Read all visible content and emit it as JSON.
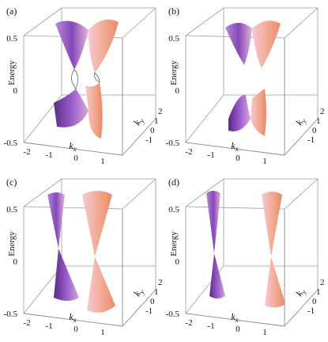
{
  "panels": [
    {
      "label": "(a)",
      "cones": "merged",
      "energy_ticks": [
        "0.5",
        "0",
        "-0.5"
      ],
      "kx_ticks": [
        "-2",
        "-1",
        "0",
        "1"
      ],
      "ky_ticks": [
        "2",
        "1",
        "0",
        "-1"
      ],
      "energy_label": "Energy",
      "kx_label": "k",
      "kx_sub": "x",
      "ky_label": "k",
      "ky_sub": "y"
    },
    {
      "label": "(b)",
      "cones": "gapped",
      "energy_ticks": [
        "0.5",
        "0",
        "-0.5"
      ],
      "kx_ticks": [
        "-2",
        "-1",
        "0",
        "1"
      ],
      "ky_ticks": [
        "2",
        "1",
        "0",
        "-1"
      ],
      "energy_label": "Energy",
      "kx_label": "k",
      "kx_sub": "x",
      "ky_label": "k",
      "ky_sub": "y"
    },
    {
      "label": "(c)",
      "cones": "two-cones-close",
      "energy_ticks": [
        "0.5",
        "0",
        "-0.5"
      ],
      "kx_ticks": [
        "-2",
        "-1",
        "0",
        "1"
      ],
      "ky_ticks": [
        "2",
        "1",
        "0",
        "-1"
      ],
      "energy_label": "Energy",
      "kx_label": "k",
      "kx_sub": "x",
      "ky_label": "k",
      "ky_sub": "y"
    },
    {
      "label": "(d)",
      "cones": "two-cones-far",
      "energy_ticks": [
        "0.5",
        "0",
        "-0.5"
      ],
      "kx_ticks": [
        "-2",
        "-1",
        "0",
        "1"
      ],
      "ky_ticks": [
        "2",
        "1",
        "0",
        "-1"
      ],
      "energy_label": "Energy",
      "kx_label": "k",
      "kx_sub": "x",
      "ky_label": "k",
      "ky_sub": "y"
    }
  ],
  "colors": {
    "cone_left": "#7a3fa8",
    "cone_right": "#f2a98f",
    "cone_dark": "#4a1f7a",
    "cone_light": "#f4c6c8",
    "box": "#9a9a9a"
  }
}
